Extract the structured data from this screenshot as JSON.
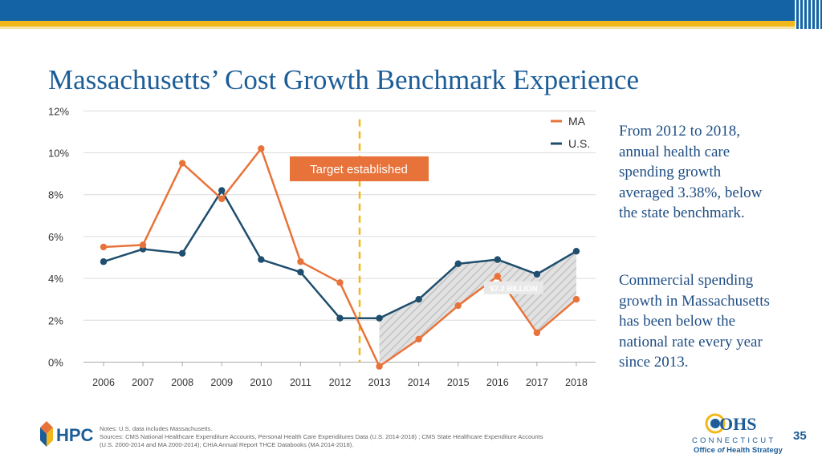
{
  "slide": {
    "title": "Massachusetts’ Cost Growth Benchmark Experience",
    "page_number": "35",
    "side_text_1": "From 2012 to 2018, annual health care spending growth averaged 3.38%, below the state benchmark.",
    "side_text_2": "Commercial spending growth in Massachusetts has been below the national rate every year since 2013.",
    "notes": [
      "Notes: U.S. data includes Massachusetts.",
      "Sources: CMS National Healthcare Expenditure Accounts, Personal Health Care Expenditures Data (U.S. 2014-2018) ; CMS State Healthcare Expenditure Accounts",
      "(U.S. 2000-2014 and MA 2000-2014); CHIA Annual Report THCE Databooks  (MA 2014-2018)."
    ],
    "logos": {
      "hpc": "HPC",
      "ohs": "OHS",
      "ohs_state": "CONNECTICUT",
      "ohs_office_1": "Office ",
      "ohs_office_of": "of",
      "ohs_office_2": " Health Strategy"
    },
    "colors": {
      "title": "#1c5d98",
      "ma": "#e8733a",
      "us": "#1f4e6e",
      "accent_bar": "#1464a5",
      "accent_stripe": "#f2b81b"
    }
  },
  "chart_data": {
    "type": "line",
    "title": "",
    "x": [
      "2006",
      "2007",
      "2008",
      "2009",
      "2010",
      "2011",
      "2012",
      "2013",
      "2014",
      "2015",
      "2016",
      "2017",
      "2018"
    ],
    "series": [
      {
        "name": "MA",
        "values": [
          5.5,
          5.6,
          9.5,
          7.8,
          10.2,
          4.8,
          3.8,
          -0.2,
          1.1,
          2.7,
          4.1,
          1.4,
          3.0
        ]
      },
      {
        "name": "U.S.",
        "values": [
          4.8,
          5.4,
          5.2,
          8.2,
          4.9,
          4.3,
          2.1,
          2.1,
          3.0,
          4.7,
          4.9,
          4.2,
          5.3
        ]
      }
    ],
    "y_ticks": [
      "0%",
      "2%",
      "4%",
      "6%",
      "8%",
      "10%",
      "12%"
    ],
    "y_tick_values": [
      0,
      2,
      4,
      6,
      8,
      10,
      12
    ],
    "ylim": [
      0,
      12
    ],
    "xlabel": "",
    "ylabel": "",
    "grid": true,
    "legend_position": "top-right",
    "annotations": {
      "target_label": "Target established",
      "target_between": [
        "2012",
        "2013"
      ],
      "gap_label": "$7.2 BILLION",
      "gap_from": "2013",
      "gap_to": "2018"
    }
  }
}
